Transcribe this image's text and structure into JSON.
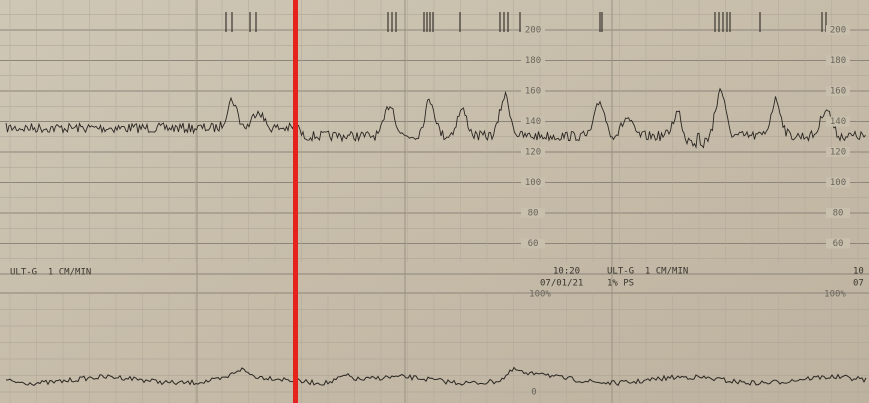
{
  "fhr_scale_left": {
    "labels": [
      "200",
      "180",
      "160",
      "140",
      "120",
      "100",
      "80",
      "60"
    ]
  },
  "fhr_scale_right": {
    "labels": [
      "200",
      "180",
      "160",
      "140",
      "120",
      "100",
      "80",
      "60"
    ]
  },
  "left_header": "ULT-G  1 CM/MIN",
  "marker": {
    "time": "10:20",
    "date": "07/01/21",
    "mode": "ULT-G  1 CM/MIN",
    "ps": "1% PS"
  },
  "edge_marker": {
    "time": "10",
    "date": "07"
  },
  "toco_scale": {
    "top_left": "100%",
    "top_right": "100%",
    "bottom": "0"
  }
}
